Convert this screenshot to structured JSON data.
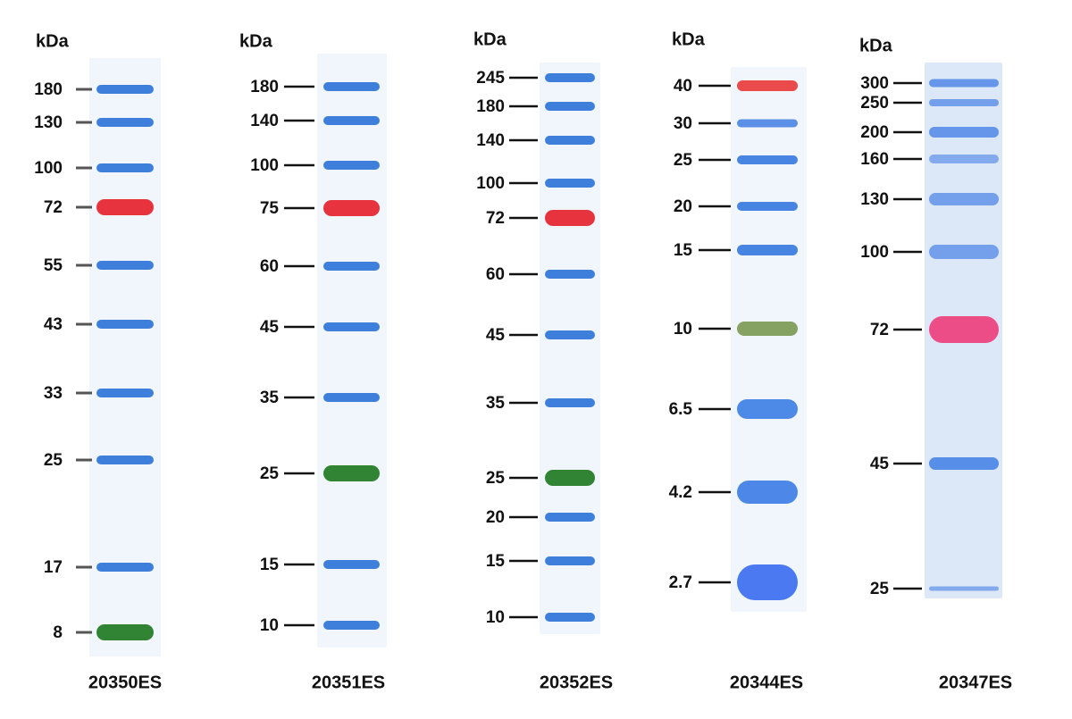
{
  "ladders": [
    {
      "unit": "kDa",
      "name": "20350ES",
      "bands": [
        {
          "label": "180",
          "color": "#2f74d8"
        },
        {
          "label": "130",
          "color": "#2f74d8"
        },
        {
          "label": "100",
          "color": "#2f74d8"
        },
        {
          "label": "72",
          "color": "#e6222c"
        },
        {
          "label": "55",
          "color": "#2f74d8"
        },
        {
          "label": "43",
          "color": "#2f74d8"
        },
        {
          "label": "33",
          "color": "#2f74d8"
        },
        {
          "label": "25",
          "color": "#2f74d8"
        },
        {
          "label": "17",
          "color": "#2f74d8"
        },
        {
          "label": "8",
          "color": "#1f7a22"
        }
      ]
    },
    {
      "unit": "kDa",
      "name": "20351ES",
      "bands": [
        {
          "label": "180",
          "color": "#2f74d8"
        },
        {
          "label": "140",
          "color": "#2f74d8"
        },
        {
          "label": "100",
          "color": "#2f74d8"
        },
        {
          "label": "75",
          "color": "#e6222c"
        },
        {
          "label": "60",
          "color": "#2f74d8"
        },
        {
          "label": "45",
          "color": "#2f74d8"
        },
        {
          "label": "35",
          "color": "#2f74d8"
        },
        {
          "label": "25",
          "color": "#1f7a22"
        },
        {
          "label": "15",
          "color": "#2f74d8"
        },
        {
          "label": "10",
          "color": "#2f74d8"
        }
      ]
    },
    {
      "unit": "kDa",
      "name": "20352ES",
      "bands": [
        {
          "label": "245",
          "color": "#2f74d8"
        },
        {
          "label": "180",
          "color": "#2f74d8"
        },
        {
          "label": "140",
          "color": "#2f74d8"
        },
        {
          "label": "100",
          "color": "#2f74d8"
        },
        {
          "label": "72",
          "color": "#e6222c"
        },
        {
          "label": "60",
          "color": "#2f74d8"
        },
        {
          "label": "45",
          "color": "#2f74d8"
        },
        {
          "label": "35",
          "color": "#2f74d8"
        },
        {
          "label": "25",
          "color": "#1f7a22"
        },
        {
          "label": "20",
          "color": "#2f74d8"
        },
        {
          "label": "15",
          "color": "#2f74d8"
        },
        {
          "label": "10",
          "color": "#2f74d8"
        }
      ]
    },
    {
      "unit": "kDa",
      "name": "20344ES",
      "bands": [
        {
          "label": "40",
          "color": "#ea3b3b"
        },
        {
          "label": "30",
          "color": "#4f86e4"
        },
        {
          "label": "25",
          "color": "#3a7ae0"
        },
        {
          "label": "20",
          "color": "#3a7ae0"
        },
        {
          "label": "15",
          "color": "#3a7ae0"
        },
        {
          "label": "10",
          "color": "#7d9a55"
        },
        {
          "label": "6.5",
          "color": "#3f80e6"
        },
        {
          "label": "4.2",
          "color": "#3f7ee6"
        },
        {
          "label": "2.7",
          "color": "#3c6ef0"
        }
      ]
    },
    {
      "unit": "kDa",
      "name": "20347ES",
      "bands": [
        {
          "label": "300",
          "color": "#5a8ee8"
        },
        {
          "label": "250",
          "color": "#6a98e8"
        },
        {
          "label": "200",
          "color": "#5a8ee8"
        },
        {
          "label": "160",
          "color": "#7aa4ea"
        },
        {
          "label": "130",
          "color": "#6a98e8"
        },
        {
          "label": "100",
          "color": "#6a98e8"
        },
        {
          "label": "72",
          "color": "#ee3f7c"
        },
        {
          "label": "45",
          "color": "#4a86e6"
        },
        {
          "label": "25",
          "color": "#7aa4ea"
        }
      ]
    }
  ]
}
